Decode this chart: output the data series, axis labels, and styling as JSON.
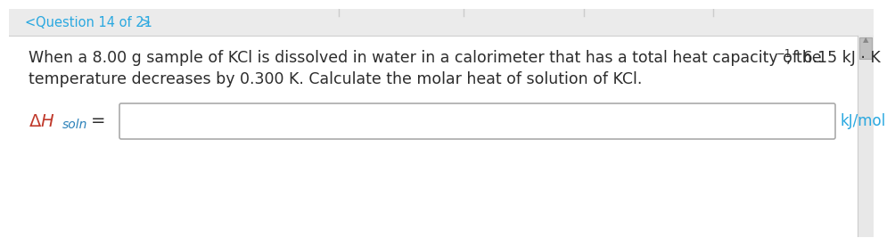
{
  "nav_text": "Question 14 of 21",
  "nav_color": "#29a8e0",
  "nav_fontsize": 10.5,
  "body_line1a": "When a 8.00 g sample of KCl is dissolved in water in a calorimeter that has a total heat capacity of 6.15 kJ · K",
  "body_line1_sup": "−1",
  "body_line1b": ", the",
  "body_line2": "temperature decreases by 0.300 K. Calculate the molar heat of solution of KCl.",
  "body_fontsize": 12.5,
  "body_color": "#2c2c2c",
  "label_fontsize": 13,
  "unit_text": "kJ/mol",
  "unit_color": "#29a8e0",
  "unit_fontsize": 12,
  "bg_top": "#e8e8e8",
  "bg_card": "#ffffff",
  "scrollbar_bg": "#e8e8e8",
  "scrollbar_thumb": "#c0c0c0",
  "input_box_border": "#aaaaaa",
  "delta_h_color": "#c0392b",
  "soln_color": "#2980b9",
  "nav_bg": "#ebebeb"
}
